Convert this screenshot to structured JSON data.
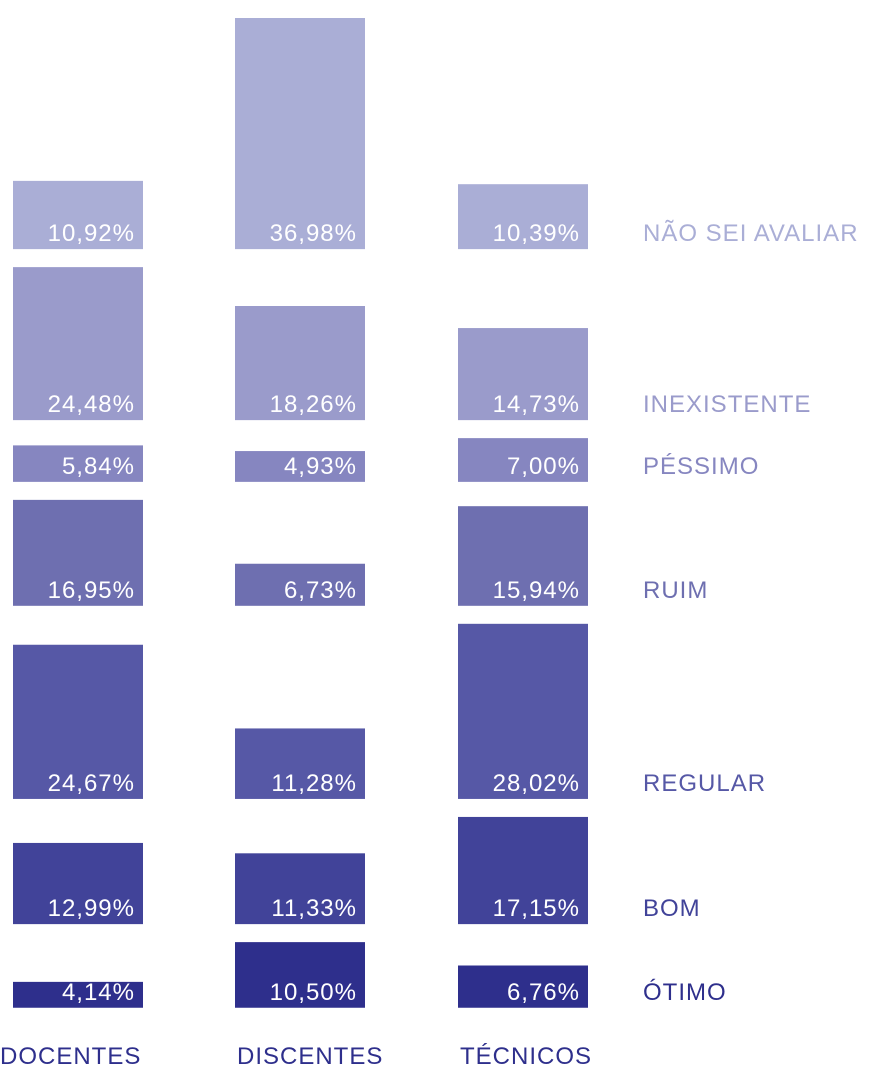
{
  "chart_data": {
    "type": "bar",
    "categories": [
      "DOCENTES",
      "DISCENTES",
      "TÉCNICOS"
    ],
    "series": [
      {
        "name": "NÃO SEI AVALIAR",
        "color": "#aaaed6",
        "values": [
          10.92,
          36.98,
          10.39
        ],
        "value_labels": [
          "10,92%",
          "36,98%",
          "10,39%"
        ]
      },
      {
        "name": "INEXISTENTE",
        "color": "#9a9bcb",
        "values": [
          24.48,
          18.26,
          14.73
        ],
        "value_labels": [
          "24,48%",
          "18,26%",
          "14,73%"
        ]
      },
      {
        "name": "PÉSSIMO",
        "color": "#8686c0",
        "values": [
          5.84,
          4.93,
          7.0
        ],
        "value_labels": [
          "5,84%",
          "4,93%",
          "7,00%"
        ]
      },
      {
        "name": "RUIM",
        "color": "#6e6fb0",
        "values": [
          16.95,
          6.73,
          15.94
        ],
        "value_labels": [
          "16,95%",
          "6,73%",
          "15,94%"
        ]
      },
      {
        "name": "REGULAR",
        "color": "#5658a6",
        "values": [
          24.67,
          11.28,
          28.02
        ],
        "value_labels": [
          "24,67%",
          "11,28%",
          "28,02%"
        ]
      },
      {
        "name": "BOM",
        "color": "#414399",
        "values": [
          12.99,
          11.33,
          17.15
        ],
        "value_labels": [
          "12,99%",
          "11,33%",
          "17,15%"
        ]
      },
      {
        "name": "ÓTIMO",
        "color": "#2e2f8c",
        "values": [
          4.14,
          10.5,
          6.76
        ],
        "value_labels": [
          "4,14%",
          "10,50%",
          "6,76%"
        ]
      }
    ]
  }
}
